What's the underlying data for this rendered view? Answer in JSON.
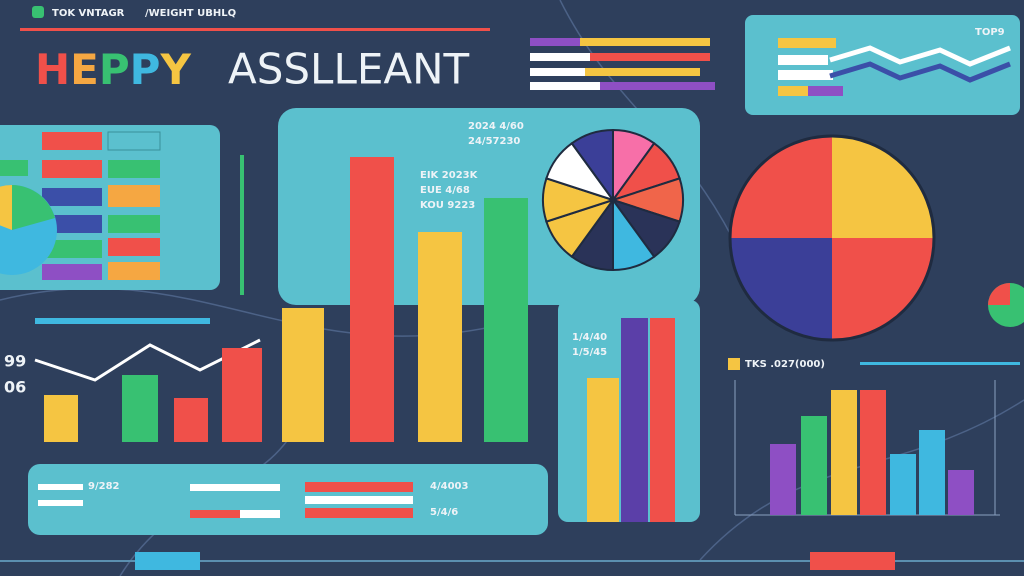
{
  "header": {
    "tags": [
      "TOK VNTAGR",
      "/WEIGHT UBHLQ"
    ],
    "title_colored": "HEPPY",
    "title_plain": "ASSLLEANT"
  },
  "top_right_panel": {
    "label": "TOP9"
  },
  "main_panel": {
    "code_lines": [
      "2024 4/60",
      "24/57230"
    ],
    "center_lines": [
      "EIK 2023K",
      "EUE 4/68",
      "KOU 9223"
    ]
  },
  "left_side": {
    "numbers": [
      "99",
      "06"
    ]
  },
  "middle_panel": {
    "lines": [
      "1/4/40",
      "1/5/45"
    ]
  },
  "right_chart": {
    "label": "TKS .027(000)"
  },
  "bottom_panel": {
    "items": [
      "9/282",
      "4/4003",
      "5/4/6"
    ]
  }
}
